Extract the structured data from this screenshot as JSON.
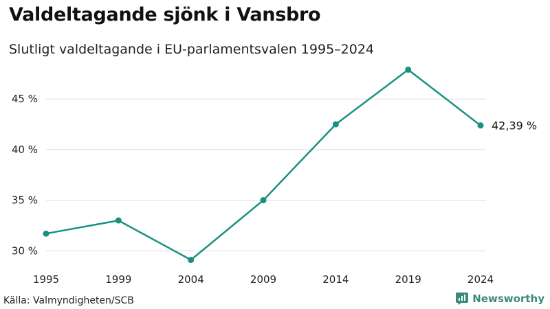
{
  "title": "Valdeltagande sjönk i Vansbro",
  "subtitle": "Slutligt valdeltagande i EU-parlamentsvalen 1995–2024",
  "source": "Källa: Valmyndigheten/SCB",
  "brand": "Newsworthy",
  "colors": {
    "line": "#1a9080",
    "grid": "#dddddd",
    "brand": "#3a8a7a"
  },
  "chart_data": {
    "type": "line",
    "title": "Valdeltagande sjönk i Vansbro",
    "subtitle": "Slutligt valdeltagande i EU-parlamentsvalen 1995–2024",
    "x": [
      "1995",
      "1999",
      "2004",
      "2009",
      "2014",
      "2019",
      "2024"
    ],
    "series": [
      {
        "values": [
          31.7,
          33.0,
          29.1,
          35.0,
          42.5,
          47.9,
          42.39
        ]
      }
    ],
    "yticks": [
      "30 %",
      "35 %",
      "40 %",
      "45 %"
    ],
    "ytick_values": [
      30,
      35,
      40,
      45
    ],
    "ylim": [
      29,
      48
    ],
    "end_label": "42,39 %",
    "grid": true,
    "legend": "none"
  }
}
